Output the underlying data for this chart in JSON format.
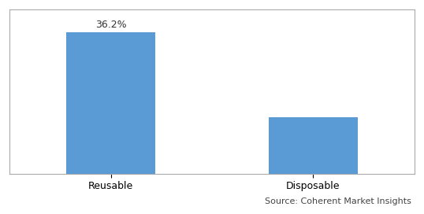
{
  "categories": [
    "Reusable",
    "Disposable"
  ],
  "values": [
    36.2,
    14.5
  ],
  "bar_color": "#5B9BD5",
  "bar_labels": [
    "36.2%",
    ""
  ],
  "ylabel": "",
  "xlabel": "",
  "ylim": [
    0,
    42
  ],
  "source_text": "Source: Coherent Market Insights",
  "background_color": "#ffffff",
  "grid_color": "#d0d0d0",
  "bar_width": 0.22,
  "label_fontsize": 9,
  "tick_fontsize": 9,
  "source_fontsize": 8,
  "x_positions": [
    0.25,
    0.75
  ]
}
